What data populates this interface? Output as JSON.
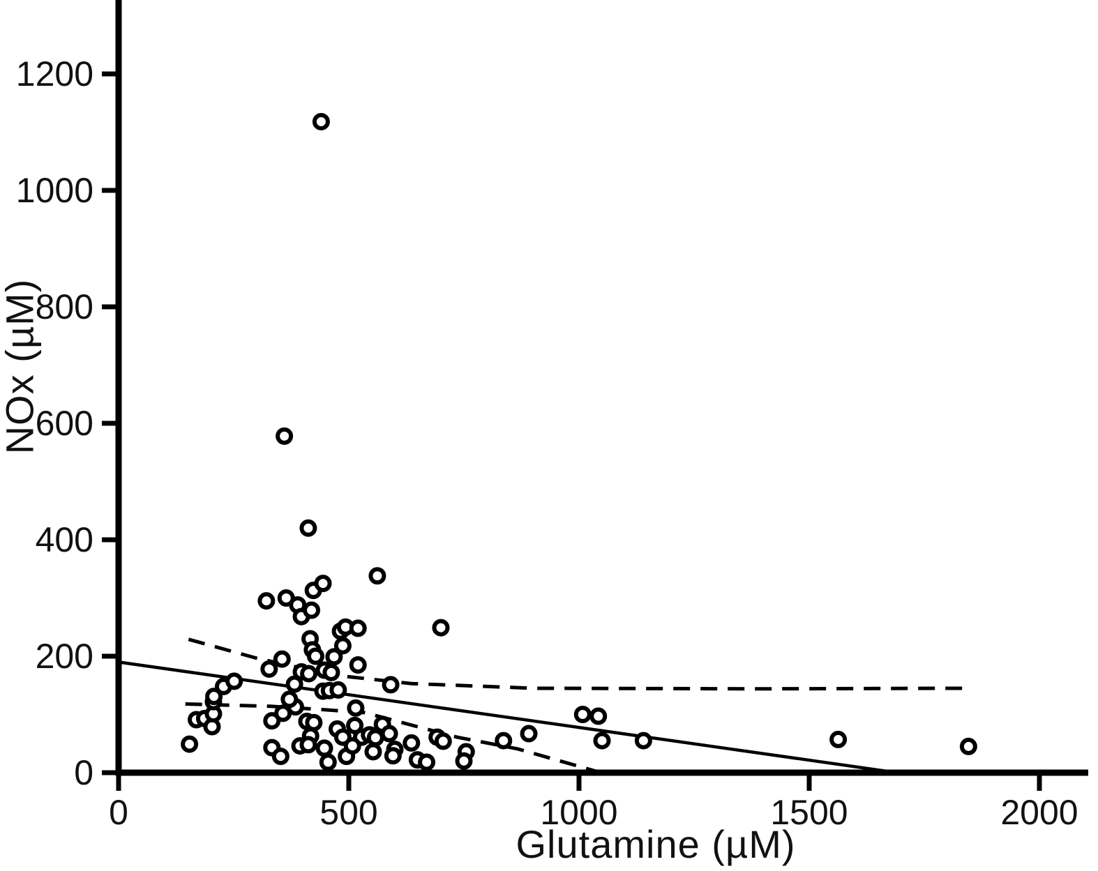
{
  "chart_data": {
    "type": "scatter",
    "title": "",
    "xlabel": "Glutamine (µM)",
    "ylabel": "NOx (µM)",
    "xlim": [
      0,
      2110
    ],
    "ylim": [
      0,
      1330
    ],
    "x_ticks": [
      0,
      500,
      1000,
      1500,
      2000
    ],
    "y_ticks": [
      0,
      200,
      400,
      600,
      800,
      1000,
      1200
    ],
    "grid": false,
    "legend": "none",
    "marker": "open-circle",
    "marker_color": "#000000",
    "line_color": "#000000",
    "points": [
      [
        440,
        1118
      ],
      [
        360,
        578
      ],
      [
        412,
        420
      ],
      [
        562,
        338
      ],
      [
        700,
        249
      ],
      [
        321,
        295
      ],
      [
        364,
        300
      ],
      [
        389,
        288
      ],
      [
        397,
        268
      ],
      [
        419,
        279
      ],
      [
        423,
        313
      ],
      [
        444,
        325
      ],
      [
        482,
        243
      ],
      [
        493,
        250
      ],
      [
        520,
        248
      ],
      [
        487,
        218
      ],
      [
        416,
        230
      ],
      [
        421,
        211
      ],
      [
        228,
        148
      ],
      [
        251,
        157
      ],
      [
        327,
        178
      ],
      [
        355,
        195
      ],
      [
        382,
        152
      ],
      [
        397,
        173
      ],
      [
        413,
        170
      ],
      [
        428,
        200
      ],
      [
        468,
        199
      ],
      [
        447,
        176
      ],
      [
        462,
        172
      ],
      [
        520,
        185
      ],
      [
        591,
        151
      ],
      [
        444,
        140
      ],
      [
        458,
        141
      ],
      [
        477,
        142
      ],
      [
        154,
        49
      ],
      [
        169,
        91
      ],
      [
        187,
        93
      ],
      [
        203,
        79
      ],
      [
        206,
        101
      ],
      [
        206,
        122
      ],
      [
        207,
        131
      ],
      [
        333,
        89
      ],
      [
        357,
        102
      ],
      [
        384,
        113
      ],
      [
        371,
        126
      ],
      [
        409,
        88
      ],
      [
        424,
        86
      ],
      [
        417,
        63
      ],
      [
        394,
        46
      ],
      [
        412,
        48
      ],
      [
        333,
        43
      ],
      [
        352,
        28
      ],
      [
        447,
        42
      ],
      [
        455,
        18
      ],
      [
        475,
        75
      ],
      [
        487,
        61
      ],
      [
        495,
        28
      ],
      [
        515,
        111
      ],
      [
        513,
        81
      ],
      [
        528,
        61
      ],
      [
        508,
        46
      ],
      [
        545,
        65
      ],
      [
        558,
        60
      ],
      [
        553,
        36
      ],
      [
        573,
        83
      ],
      [
        588,
        67
      ],
      [
        600,
        40
      ],
      [
        596,
        29
      ],
      [
        636,
        51
      ],
      [
        649,
        22
      ],
      [
        669,
        18
      ],
      [
        692,
        61
      ],
      [
        705,
        54
      ],
      [
        755,
        36
      ],
      [
        750,
        20
      ],
      [
        836,
        55
      ],
      [
        891,
        67
      ],
      [
        1008,
        100
      ],
      [
        1042,
        97
      ],
      [
        1050,
        55
      ],
      [
        1140,
        55
      ],
      [
        1563,
        57
      ],
      [
        1846,
        45
      ]
    ],
    "regression_line": {
      "style": "solid",
      "x1": 0,
      "y1": 190,
      "x2": 1691,
      "y2": 0
    },
    "ci_upper_dashed": [
      [
        152,
        229
      ],
      [
        298,
        197
      ],
      [
        462,
        168
      ],
      [
        636,
        153
      ],
      [
        900,
        145
      ],
      [
        1400,
        144
      ],
      [
        1840,
        145
      ]
    ],
    "ci_lower_dashed": [
      [
        145,
        118
      ],
      [
        330,
        114
      ],
      [
        450,
        108
      ],
      [
        535,
        103
      ],
      [
        611,
        87
      ],
      [
        735,
        61
      ],
      [
        866,
        41
      ],
      [
        1048,
        0
      ]
    ]
  }
}
